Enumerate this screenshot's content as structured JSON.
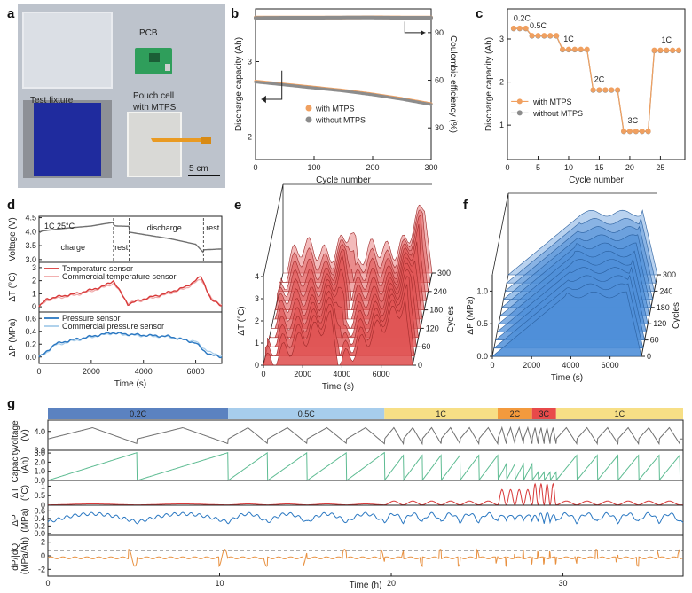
{
  "panels": {
    "a": "a",
    "b": "b",
    "c": "c",
    "d": "d",
    "e": "e",
    "f": "f",
    "g": "g"
  },
  "photo": {
    "pcb": "PCB",
    "test_fixture": "Test fixture",
    "pouch_cell_line1": "Pouch cell",
    "pouch_cell_line2": "with MTPS",
    "scale_bar": "5 cm"
  },
  "chart_data": [
    {
      "id": "b",
      "type": "line",
      "xlabel": "Cycle number",
      "ylabel_left": "Discharge capacity (Ah)",
      "ylabel_right": "Coulombic efficiency (%)",
      "xlim": [
        0,
        300
      ],
      "xticks": [
        0,
        100,
        200,
        300
      ],
      "ylim_left": [
        1.7,
        3.7
      ],
      "yticks_left": [
        2,
        3
      ],
      "ylim_right": [
        10,
        105
      ],
      "yticks_right": [
        30,
        60,
        90
      ],
      "legend_position": "center-right",
      "legend": [
        "with MTPS",
        "without MTPS"
      ],
      "series": [
        {
          "name": "with MTPS",
          "axis": "left",
          "color": "#f0a060",
          "x": [
            0,
            50,
            100,
            150,
            200,
            250,
            300
          ],
          "values": [
            2.74,
            2.7,
            2.66,
            2.62,
            2.57,
            2.51,
            2.44
          ]
        },
        {
          "name": "without MTPS",
          "axis": "left",
          "color": "#8c8c8c",
          "x": [
            0,
            50,
            100,
            150,
            200,
            250,
            300
          ],
          "values": [
            2.73,
            2.69,
            2.65,
            2.61,
            2.56,
            2.5,
            2.43
          ]
        },
        {
          "name": "with MTPS",
          "axis": "right",
          "color": "#f0a060",
          "x": [
            0,
            50,
            100,
            150,
            200,
            250,
            300
          ],
          "values": [
            99.5,
            99.6,
            99.6,
            99.6,
            99.7,
            99.6,
            99.6
          ]
        },
        {
          "name": "without MTPS",
          "axis": "right",
          "color": "#8c8c8c",
          "x": [
            0,
            50,
            100,
            150,
            200,
            250,
            300
          ],
          "values": [
            99.3,
            99.4,
            99.4,
            99.5,
            99.5,
            99.4,
            99.4
          ]
        }
      ]
    },
    {
      "id": "c",
      "type": "line",
      "xlabel": "Cycle number",
      "ylabel": "Discharge capacity (Ah)",
      "xlim": [
        0,
        29
      ],
      "xticks": [
        0,
        5,
        10,
        15,
        20,
        25
      ],
      "ylim": [
        0.2,
        3.7
      ],
      "yticks": [
        1,
        2,
        3
      ],
      "legend_position": "bottom-left",
      "legend": [
        "with MTPS",
        "without MTPS"
      ],
      "annotations": [
        "0.2C",
        "0.5C",
        "1C",
        "2C",
        "3C",
        "1C"
      ],
      "x": [
        1,
        2,
        3,
        4,
        5,
        6,
        7,
        8,
        9,
        10,
        11,
        12,
        13,
        14,
        15,
        16,
        17,
        18,
        19,
        20,
        21,
        22,
        23,
        24,
        25,
        26,
        27,
        28
      ],
      "series": [
        {
          "name": "with MTPS",
          "color": "#f0a060",
          "values": [
            3.25,
            3.25,
            3.25,
            3.08,
            3.08,
            3.08,
            3.08,
            3.08,
            2.76,
            2.76,
            2.76,
            2.76,
            2.76,
            1.82,
            1.82,
            1.82,
            1.82,
            1.82,
            0.86,
            0.86,
            0.86,
            0.86,
            0.86,
            2.74,
            2.74,
            2.74,
            2.74,
            2.74
          ]
        },
        {
          "name": "without MTPS",
          "color": "#8c8c8c",
          "values": [
            3.24,
            3.24,
            3.24,
            3.07,
            3.07,
            3.07,
            3.07,
            3.07,
            2.75,
            2.75,
            2.75,
            2.75,
            2.75,
            1.81,
            1.81,
            1.81,
            1.81,
            1.81,
            0.85,
            0.85,
            0.85,
            0.85,
            0.85,
            2.73,
            2.73,
            2.73,
            2.73,
            2.73
          ]
        }
      ]
    },
    {
      "id": "d",
      "type": "line",
      "xlabel": "Time (s)",
      "xlim": [
        0,
        7000
      ],
      "xticks": [
        0,
        2000,
        4000,
        6000
      ],
      "annotation_condition": "1C  25°C",
      "phase_labels": [
        "charge",
        "rest",
        "discharge",
        "rest"
      ],
      "phase_boundaries": [
        2850,
        3450,
        6300
      ],
      "subplots": [
        {
          "ylabel": "Voltage (V)",
          "ylim": [
            2.9,
            4.55
          ],
          "yticks": [
            3.0,
            3.5,
            4.0,
            4.5
          ],
          "series": [
            {
              "name": "",
              "color": "#707070",
              "x": [
                0,
                100,
                500,
                1000,
                1500,
                2000,
                2500,
                2850,
                2860,
                3000,
                3450,
                3460,
                4000,
                5000,
                6000,
                6300,
                6310,
                7000
              ],
              "values": [
                3.95,
                4.02,
                4.07,
                4.12,
                4.16,
                4.2,
                4.28,
                4.33,
                4.22,
                4.2,
                4.19,
                3.98,
                3.9,
                3.75,
                3.55,
                3.25,
                3.35,
                3.38
              ]
            }
          ]
        },
        {
          "ylabel": "ΔT (°C)",
          "ylim": [
            -0.4,
            3.4
          ],
          "yticks": [
            0,
            1,
            2,
            3
          ],
          "legend": [
            "Temperature sensor",
            "Commercial temperature sensor"
          ],
          "series": [
            {
              "name": "Temperature sensor",
              "color": "#d83a3a",
              "x": [
                0,
                300,
                800,
                1400,
                2000,
                2500,
                2850,
                3400,
                4000,
                4800,
                5600,
                6200,
                6300,
                6600,
                7000
              ],
              "values": [
                0.0,
                0.6,
                0.8,
                1.0,
                1.3,
                1.6,
                2.0,
                0.2,
                0.6,
                1.0,
                1.5,
                2.3,
                1.9,
                0.5,
                0.1
              ]
            },
            {
              "name": "Commercial temperature sensor",
              "color": "#f0a8a8",
              "x": [
                0,
                300,
                800,
                1400,
                2000,
                2500,
                2850,
                3400,
                4000,
                4800,
                5600,
                6200,
                6300,
                6600,
                7000
              ],
              "values": [
                0.0,
                0.5,
                0.7,
                0.9,
                1.2,
                1.5,
                1.8,
                0.3,
                0.5,
                0.9,
                1.4,
                2.1,
                1.8,
                0.6,
                0.2
              ]
            }
          ]
        },
        {
          "ylabel": "ΔP (MPa)",
          "ylim": [
            -0.1,
            0.7
          ],
          "yticks": [
            0.0,
            0.2,
            0.4,
            0.6
          ],
          "legend": [
            "Pressure sensor",
            "Commercial pressure sensor"
          ],
          "series": [
            {
              "name": "Pressure sensor",
              "color": "#2b78c2",
              "x": [
                0,
                200,
                600,
                1200,
                2000,
                2800,
                3200,
                4000,
                5000,
                6000,
                6300,
                6600,
                7000
              ],
              "values": [
                0.0,
                0.05,
                0.2,
                0.26,
                0.32,
                0.38,
                0.36,
                0.34,
                0.32,
                0.22,
                0.1,
                0.03,
                0.0
              ]
            },
            {
              "name": "Commercial pressure sensor",
              "color": "#a8cdea",
              "x": [
                0,
                200,
                600,
                1200,
                2000,
                2800,
                3200,
                4000,
                5000,
                6000,
                6300,
                6600,
                7000
              ],
              "values": [
                0.0,
                0.04,
                0.18,
                0.24,
                0.31,
                0.37,
                0.35,
                0.33,
                0.31,
                0.24,
                0.14,
                0.06,
                0.02
              ]
            }
          ]
        }
      ]
    },
    {
      "id": "e",
      "type": "area",
      "view": "3D waterfall",
      "xlabel": "Time (s)",
      "ylabel": "ΔT (°C)",
      "zlabel": "Cycles",
      "xticks": [
        0,
        2000,
        4000,
        6000
      ],
      "yticks": [
        0,
        1,
        2,
        3,
        4
      ],
      "zticks": [
        0,
        60,
        120,
        180,
        240,
        300
      ],
      "color": "#e05555"
    },
    {
      "id": "f",
      "type": "area",
      "view": "3D waterfall",
      "xlabel": "Time (s)",
      "ylabel": "ΔP (MPa)",
      "zlabel": "Cycles",
      "xticks": [
        0,
        2000,
        4000,
        6000
      ],
      "yticks": [
        0.0,
        0.5,
        1.0
      ],
      "zticks": [
        0,
        60,
        120,
        180,
        240,
        300
      ],
      "color": "#4f8fd8"
    },
    {
      "id": "g",
      "type": "line",
      "xlabel": "Time (h)",
      "xlim": [
        0,
        37
      ],
      "xticks": [
        0,
        10,
        20,
        30
      ],
      "rate_bands": [
        {
          "label": "0.2C",
          "start": 0,
          "end": 10.5,
          "color": "#5b82c0"
        },
        {
          "label": "0.5C",
          "start": 10.5,
          "end": 19.6,
          "color": "#a7cdec"
        },
        {
          "label": "1C",
          "start": 19.6,
          "end": 26.2,
          "color": "#f7df86"
        },
        {
          "label": "2C",
          "start": 26.2,
          "end": 28.2,
          "color": "#f39a3d"
        },
        {
          "label": "3C",
          "start": 28.2,
          "end": 29.6,
          "color": "#e84a4a"
        },
        {
          "label": "1C",
          "start": 29.6,
          "end": 37,
          "color": "#f7df86"
        }
      ],
      "subplots": [
        {
          "ylabel_line1": "Voltage",
          "ylabel_line2": "(V)",
          "ylim": [
            3.0,
            4.6
          ],
          "yticks": [
            3.0,
            4.0
          ],
          "color": "#707070"
        },
        {
          "ylabel_line1": "Capacity",
          "ylabel_line2": "(Ah)",
          "ylim": [
            0,
            3.3
          ],
          "yticks": [
            0.0,
            1.0,
            2.0,
            3.0
          ],
          "color": "#5cbb91"
        },
        {
          "ylabel_line1": "ΔT",
          "ylabel_line2": "(°C)",
          "ylim": [
            0,
            1.3
          ],
          "yticks": [
            0,
            0.5,
            1.0
          ],
          "color": "#d83a3a"
        },
        {
          "ylabel_line1": "ΔP",
          "ylabel_line2": "(MPa)",
          "ylim": [
            -0.05,
            0.75
          ],
          "yticks": [
            0.0,
            0.2,
            0.4,
            0.6
          ],
          "color": "#2b78c2"
        },
        {
          "ylabel_line1": "dP/|dQ|",
          "ylabel_line2": "(MPa/Ah)",
          "ylim": [
            -3,
            3
          ],
          "yticks": [
            -2,
            0,
            2
          ],
          "color": "#e8903f"
        }
      ]
    }
  ],
  "colors": {
    "orange": "#f0a060",
    "gray": "#8c8c8c",
    "red": "#d83a3a",
    "blue": "#2b78c2",
    "green": "#5cbb91"
  }
}
